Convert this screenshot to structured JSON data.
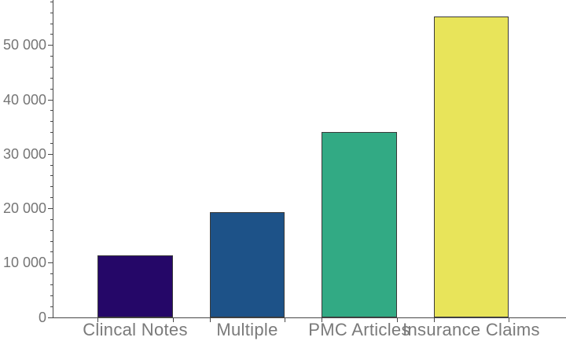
{
  "chart_data": {
    "type": "bar",
    "title": "",
    "xlabel": "",
    "ylabel": "",
    "categories": [
      "Clincal Notes",
      "Multiple",
      "PMC Articles",
      "Insurance Claims"
    ],
    "values": [
      11300,
      19300,
      34000,
      55200
    ],
    "bar_colors": [
      "#250768",
      "#1d5288",
      "#32aa84",
      "#e8e45a"
    ],
    "bar_edge_color": "#3a3a3a",
    "ylim": [
      0,
      58275
    ],
    "y_major_ticks": [
      0,
      10000,
      20000,
      30000,
      40000,
      50000
    ],
    "y_major_tick_labels": [
      "0",
      "10 000",
      "20 000",
      "30 000",
      "40 000",
      "50 000"
    ],
    "y_minor_tick_step": 2000,
    "grid": false,
    "legend": null,
    "axis_color": "#474747",
    "tick_label_color": "#757575",
    "category_label_color": "#7a7a7a",
    "background_color": "#ffffff"
  }
}
